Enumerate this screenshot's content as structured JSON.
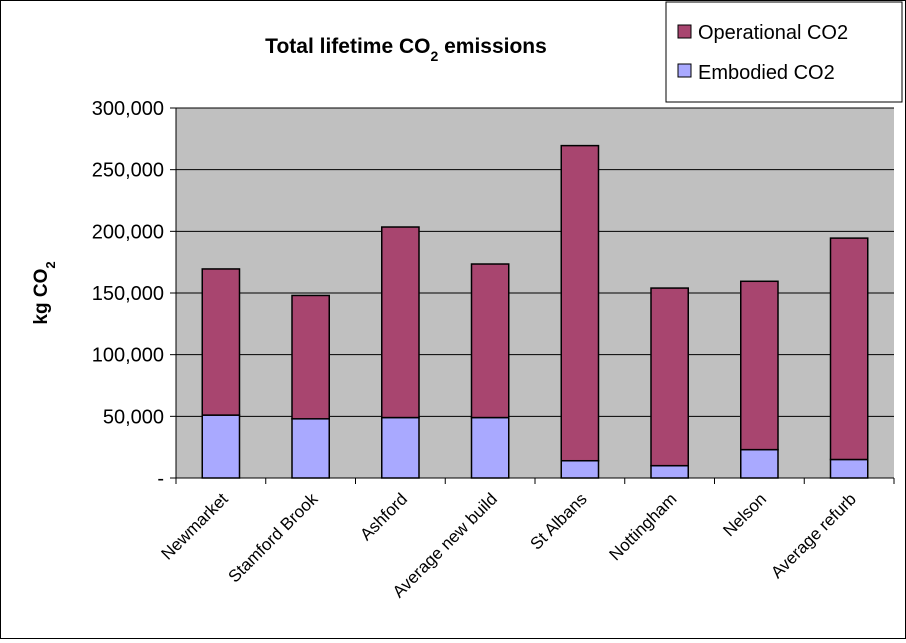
{
  "chart_data": {
    "type": "bar",
    "stacked": true,
    "title": "Total lifetime CO",
    "title_subscript": "2",
    "title_suffix": " emissions",
    "ylabel": "kg CO",
    "ylabel_subscript": "2",
    "xlabel": "",
    "ylim": [
      0,
      300000
    ],
    "yticks": [
      0,
      50000,
      100000,
      150000,
      200000,
      250000,
      300000
    ],
    "ytick_labels": [
      "-",
      "50,000",
      "100,000",
      "150,000",
      "200,000",
      "250,000",
      "300,000"
    ],
    "grid": true,
    "legend_position": "top-right",
    "categories": [
      "Newmarket",
      "Stamford Brook",
      "Ashford",
      "Average new build",
      "St Albans",
      "Nottingham",
      "Nelson",
      "Average refurb"
    ],
    "series": [
      {
        "name": "Embodied CO2",
        "color": "#A9A9FF",
        "values": [
          51000,
          48000,
          49000,
          49000,
          14000,
          10000,
          23000,
          15000
        ]
      },
      {
        "name": "Operational CO2",
        "color": "#A8456F",
        "values": [
          118500,
          100000,
          154500,
          124500,
          255500,
          144000,
          136500,
          179500
        ]
      }
    ],
    "legend_order": [
      "Operational CO2",
      "Embodied CO2"
    ],
    "plot_background": "#C0C0C0"
  }
}
